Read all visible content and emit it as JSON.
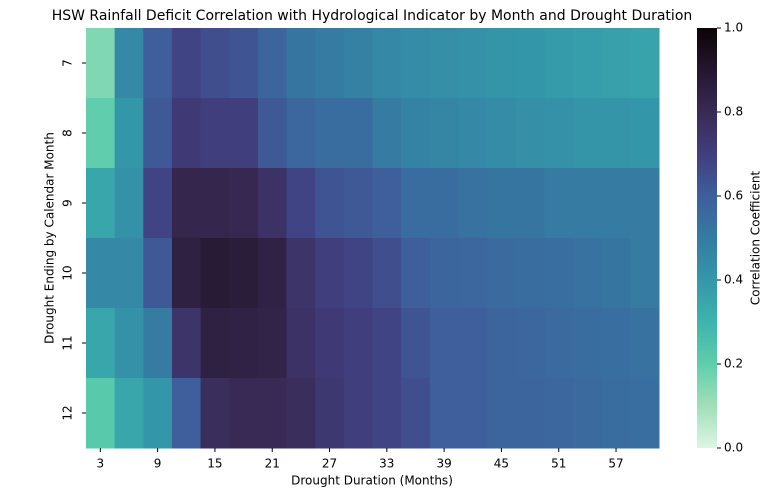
{
  "chart_data": {
    "type": "heatmap",
    "title": "HSW Rainfall Deficit Correlation with Hydrological Indicator by Month and Drought Duration",
    "x_label": "Drought Duration (Months)",
    "y_label": "Drought Ending by Calendar Month",
    "colorbar_label": "Correlation Coefficient",
    "x": [
      3,
      null,
      9,
      null,
      15,
      null,
      21,
      null,
      27,
      null,
      33,
      null,
      39,
      null,
      45,
      null,
      51,
      null,
      57,
      null
    ],
    "y": [
      7,
      8,
      9,
      10,
      11,
      12
    ],
    "values": [
      [
        0.15,
        0.45,
        0.6,
        0.68,
        0.65,
        0.63,
        0.58,
        0.52,
        0.5,
        0.48,
        0.45,
        0.44,
        0.43,
        0.42,
        0.41,
        0.4,
        0.39,
        0.38,
        0.37,
        0.36
      ],
      [
        0.2,
        0.4,
        0.62,
        0.72,
        0.7,
        0.7,
        0.62,
        0.57,
        0.55,
        0.55,
        0.5,
        0.47,
        0.46,
        0.45,
        0.44,
        0.43,
        0.42,
        0.41,
        0.41,
        0.4
      ],
      [
        0.35,
        0.42,
        0.68,
        0.82,
        0.82,
        0.81,
        0.76,
        0.68,
        0.63,
        0.62,
        0.6,
        0.55,
        0.55,
        0.53,
        0.52,
        0.52,
        0.5,
        0.5,
        0.5,
        0.5
      ],
      [
        0.45,
        0.45,
        0.62,
        0.85,
        0.88,
        0.87,
        0.84,
        0.75,
        0.7,
        0.68,
        0.65,
        0.6,
        0.58,
        0.57,
        0.56,
        0.55,
        0.54,
        0.53,
        0.52,
        0.5
      ],
      [
        0.35,
        0.42,
        0.5,
        0.75,
        0.85,
        0.84,
        0.83,
        0.76,
        0.72,
        0.7,
        0.68,
        0.63,
        0.6,
        0.6,
        0.58,
        0.57,
        0.56,
        0.55,
        0.54,
        0.53
      ],
      [
        0.22,
        0.35,
        0.4,
        0.6,
        0.78,
        0.8,
        0.8,
        0.78,
        0.73,
        0.7,
        0.68,
        0.65,
        0.6,
        0.6,
        0.58,
        0.58,
        0.57,
        0.56,
        0.55,
        0.54
      ]
    ],
    "colormap": [
      "#def5e5",
      "#a0dfb9",
      "#60ceac",
      "#3db4ad",
      "#3497a9",
      "#357ba2",
      "#3e5e9c",
      "#413e7e",
      "#382a54",
      "#23172f",
      "#0b0405"
    ],
    "clim": [
      0,
      1
    ],
    "cticks": [
      {
        "value": 0,
        "label": "0.0"
      },
      0.2,
      0.4,
      0.6,
      0.8,
      {
        "value": 1,
        "label": "1.0"
      }
    ]
  }
}
